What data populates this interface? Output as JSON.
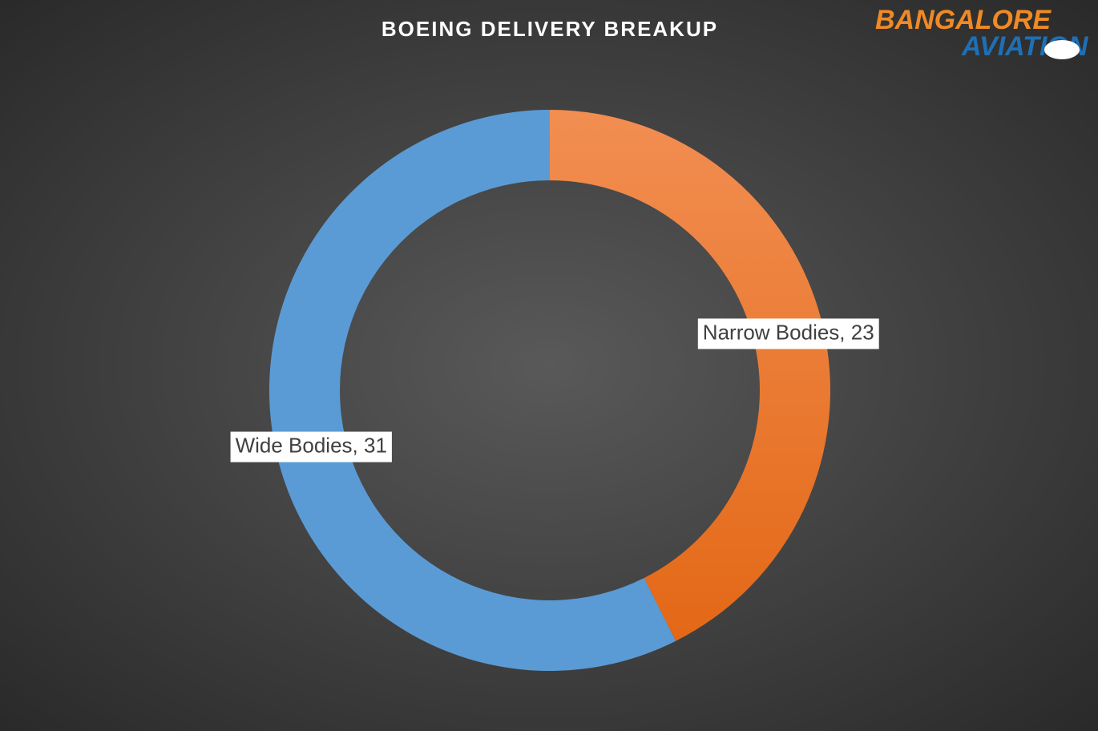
{
  "chart_data": {
    "type": "donut",
    "title": "BOEING DELIVERY BREAKUP",
    "categories": [
      "Narrow Bodies",
      "Wide Bodies"
    ],
    "values": [
      23,
      31
    ],
    "value_labels": [
      "Narrow Bodies, 23",
      "Wide Bodies, 31"
    ],
    "colors": [
      "#ed7d31",
      "#5b9bd5"
    ]
  },
  "logo": {
    "line1": "BANGALORE",
    "line2": "AVIATION"
  }
}
